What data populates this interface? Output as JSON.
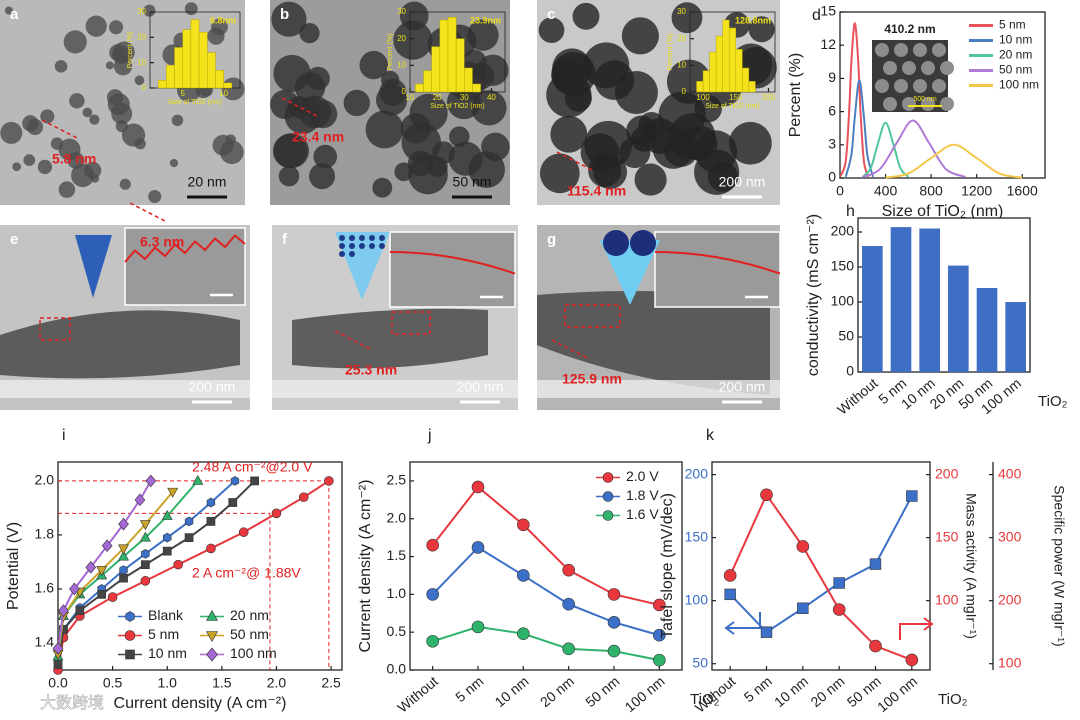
{
  "chart_data": [
    {
      "type": "histogram",
      "title": "6.8nm",
      "xlabel": "Size of TiO2 (nm)",
      "ylabel": "Percent (%)",
      "color": "#f3e21c",
      "bins": [
        2,
        3,
        4,
        5,
        6,
        7,
        8,
        9,
        10,
        11
      ],
      "counts": [
        3,
        9,
        16,
        23,
        27,
        22,
        14,
        7,
        2
      ],
      "xlim": [
        1,
        12
      ],
      "xticks": [
        5,
        10
      ],
      "ylim": [
        0,
        30
      ],
      "yticks": [
        0,
        10,
        20,
        30
      ]
    },
    {
      "type": "histogram",
      "title": "23.9nm",
      "xlabel": "Size of TiO2 (nm)",
      "ylabel": "Percent (%)",
      "color": "#f3e21c",
      "bins": [
        12,
        15,
        18,
        21,
        24,
        27,
        30,
        33,
        36
      ],
      "counts": [
        3,
        8,
        17,
        27,
        28,
        20,
        9,
        3
      ],
      "xlim": [
        10,
        45
      ],
      "xticks": [
        10,
        20,
        30,
        40
      ],
      "ylim": [
        0,
        30
      ],
      "yticks": [
        0,
        10,
        20,
        30
      ]
    },
    {
      "type": "histogram",
      "title": "128.8nm",
      "xlabel": "Size of TiO2 (nm)",
      "ylabel": "Percent (%)",
      "color": "#f3e21c",
      "bins": [
        90,
        100,
        110,
        120,
        130,
        140,
        150,
        160,
        170,
        180
      ],
      "counts": [
        4,
        8,
        15,
        21,
        27,
        24,
        16,
        9,
        4
      ],
      "xlim": [
        80,
        210
      ],
      "xticks": [
        100,
        150,
        200
      ],
      "ylim": [
        0,
        30
      ],
      "yticks": [
        0,
        10,
        20,
        30
      ]
    },
    {
      "type": "line",
      "letter": "d",
      "xlabel": "Size of TiO₂ (nm)",
      "ylabel": "Percent (%)",
      "xlim": [
        0,
        1800
      ],
      "xticks": [
        0,
        400,
        800,
        1200,
        1600
      ],
      "ylim": [
        0,
        15
      ],
      "yticks": [
        0,
        3,
        6,
        9,
        12,
        15
      ],
      "legend": "upper right",
      "inset_label": "410.2 nm",
      "inset_scale": "500 nm",
      "series": [
        {
          "name": "5 nm",
          "color": "#e8525a",
          "x": [
            0,
            50,
            80,
            100,
            130,
            160,
            180,
            210,
            250
          ],
          "values": [
            0.1,
            1.5,
            6,
            10.5,
            14,
            10.5,
            6,
            1.5,
            0.1
          ]
        },
        {
          "name": "10 nm",
          "color": "#4a7fc1",
          "x": [
            50,
            100,
            130,
            170,
            210,
            240,
            290
          ],
          "values": [
            0.1,
            2.1,
            5.5,
            8.8,
            5.5,
            2.1,
            0.1
          ]
        },
        {
          "name": "20 nm",
          "color": "#4fc79a",
          "x": [
            200,
            270,
            330,
            400,
            470,
            530,
            600
          ],
          "values": [
            0.1,
            0.9,
            3,
            5,
            3,
            0.9,
            0.1
          ]
        },
        {
          "name": "50 nm",
          "color": "#b07ad6",
          "x": [
            200,
            350,
            500,
            640,
            780,
            930,
            1100
          ],
          "values": [
            0.1,
            0.8,
            3.2,
            5.2,
            3.2,
            0.8,
            0.1
          ]
        },
        {
          "name": "100 nm",
          "color": "#f4c84a",
          "x": [
            400,
            600,
            800,
            1000,
            1200,
            1400,
            1600
          ],
          "values": [
            0.03,
            0.4,
            1.8,
            3,
            1.8,
            0.4,
            0.03
          ]
        }
      ]
    },
    {
      "type": "bar",
      "letter": "h",
      "categories": [
        "Without",
        "5 nm",
        "10 nm",
        "20 nm",
        "50 nm",
        "100 nm"
      ],
      "values": [
        180,
        207,
        205,
        152,
        120,
        100
      ],
      "color": "#3f6fc4",
      "ylim": [
        0,
        220
      ],
      "yticks": [
        0,
        50,
        100,
        150,
        200
      ],
      "ylabel": "conductivity (mS cm⁻²)",
      "xlabel": "TiO₂"
    },
    {
      "type": "line",
      "letter": "i",
      "xlabel": "Current density (A cm⁻²)",
      "ylabel": "Potential (V)",
      "xlim": [
        0,
        2.6
      ],
      "xticks": [
        {
          "value": 0,
          "label": "0.0"
        },
        0.5,
        {
          "value": 1,
          "label": "1.0"
        },
        1.5,
        {
          "value": 2,
          "label": "2.0"
        },
        2.5
      ],
      "ylim": [
        1.3,
        2.07
      ],
      "yticks": [
        1.4,
        1.6,
        1.8,
        {
          "value": 2,
          "label": "2.0"
        }
      ],
      "legend": "lower center",
      "legend_columns": 2,
      "ref_lines": [
        {
          "x": 2.48,
          "y": 2.0
        },
        {
          "x": 1.94,
          "y": 1.88
        }
      ],
      "annotations": [
        "2.48 A cm⁻²@2.0 V",
        "2 A cm⁻²@ 1.88V"
      ],
      "series": [
        {
          "name": "Blank",
          "color": "#3b6fc8",
          "marker": "hexagon",
          "x": [
            0,
            0.05,
            0.2,
            0.4,
            0.6,
            0.8,
            1.0,
            1.2,
            1.4,
            1.62
          ],
          "values": [
            1.32,
            1.45,
            1.53,
            1.6,
            1.67,
            1.73,
            1.79,
            1.85,
            1.92,
            2.0
          ]
        },
        {
          "name": "5 nm",
          "color": "#e8383d",
          "marker": "circle",
          "x": [
            0,
            0.05,
            0.2,
            0.5,
            0.8,
            1.1,
            1.4,
            1.7,
            2.0,
            2.25,
            2.48
          ],
          "values": [
            1.3,
            1.42,
            1.5,
            1.57,
            1.63,
            1.69,
            1.75,
            1.81,
            1.88,
            1.94,
            2.0
          ]
        },
        {
          "name": "10 nm",
          "color": "#444444",
          "marker": "square",
          "x": [
            0,
            0.05,
            0.2,
            0.4,
            0.6,
            0.8,
            1.0,
            1.2,
            1.4,
            1.6,
            1.8
          ],
          "values": [
            1.32,
            1.45,
            1.52,
            1.58,
            1.64,
            1.69,
            1.74,
            1.79,
            1.85,
            1.92,
            2.0
          ]
        },
        {
          "name": "20 nm",
          "color": "#2fb36a",
          "marker": "triangle",
          "x": [
            0,
            0.05,
            0.2,
            0.4,
            0.6,
            0.8,
            1.0,
            1.28
          ],
          "values": [
            1.35,
            1.5,
            1.58,
            1.65,
            1.72,
            1.79,
            1.87,
            2.0
          ]
        },
        {
          "name": "50 nm",
          "color": "#c9a227",
          "marker": "triangle-down",
          "x": [
            0,
            0.05,
            0.2,
            0.4,
            0.6,
            0.8,
            1.05
          ],
          "values": [
            1.36,
            1.5,
            1.59,
            1.67,
            1.75,
            1.84,
            1.96
          ]
        },
        {
          "name": "100 nm",
          "color": "#a569d6",
          "marker": "diamond",
          "x": [
            0,
            0.05,
            0.15,
            0.3,
            0.45,
            0.6,
            0.75,
            0.85
          ],
          "values": [
            1.38,
            1.52,
            1.6,
            1.68,
            1.76,
            1.84,
            1.93,
            2.0
          ]
        }
      ]
    },
    {
      "type": "line",
      "letter": "j",
      "categories": [
        "Without",
        "5 nm",
        "10 nm",
        "20 nm",
        "50 nm",
        "100 nm"
      ],
      "ylabel": "Current density (A cm⁻²)",
      "xlabel": "TiO₂",
      "legend": "upper right",
      "ylim": [
        0,
        2.75
      ],
      "yticks": [
        {
          "value": 0,
          "label": "0.0"
        },
        0.5,
        {
          "value": 1,
          "label": "1.0"
        },
        1.5,
        {
          "value": 2,
          "label": "2.0"
        },
        2.5
      ],
      "series": [
        {
          "name": "2.0 V",
          "color": "#e8383d",
          "marker": "circle",
          "values": [
            1.65,
            2.42,
            1.92,
            1.32,
            1.0,
            0.86
          ]
        },
        {
          "name": "1.8 V",
          "color": "#3b6fc8",
          "marker": "circle",
          "values": [
            1.0,
            1.62,
            1.25,
            0.87,
            0.63,
            0.46
          ]
        },
        {
          "name": "1.6 V",
          "color": "#2fb36a",
          "marker": "circle",
          "values": [
            0.38,
            0.57,
            0.48,
            0.28,
            0.25,
            0.13
          ]
        }
      ]
    },
    {
      "type": "line",
      "letter": "k",
      "categories": [
        "Without",
        "5 nm",
        "10 nm",
        "20 nm",
        "50 nm",
        "100 nm"
      ],
      "xlabel": "TiO₂",
      "ylabel": "Tafel slope (mV/dec)",
      "ylim": [
        45,
        210
      ],
      "yticks": [
        50,
        100,
        150,
        200
      ],
      "y2label": "Mass activity (A mgIr⁻¹)",
      "y2lim": [
        45,
        210
      ],
      "y2ticks": [
        100,
        150,
        200
      ],
      "y3label": "Specific power (W mgIr⁻¹)",
      "y3lim": [
        90,
        420
      ],
      "y3ticks": [
        100,
        200,
        300,
        400
      ],
      "series": [
        {
          "color": "#3b6fc8",
          "marker": "square",
          "values": [
            105,
            75,
            94,
            114,
            129,
            183
          ]
        },
        {
          "color": "#e8383d",
          "marker": "circle",
          "axis": "y2",
          "values": [
            120,
            184,
            143,
            93,
            64,
            53
          ]
        }
      ]
    }
  ],
  "micrographs": [
    {
      "letter": "a",
      "measurement": "5.8 nm",
      "scale_bar": "20 nm"
    },
    {
      "letter": "b",
      "measurement": "23.4 nm",
      "scale_bar": "50 nm"
    },
    {
      "letter": "c",
      "measurement": "115.4 nm",
      "scale_bar": "200 nm"
    },
    {
      "letter": "e",
      "measurement": "6.3 nm",
      "scale_bar": "200 nm"
    },
    {
      "letter": "f",
      "measurement": "25.3 nm",
      "scale_bar": "200 nm"
    },
    {
      "letter": "g",
      "measurement": "125.9 nm",
      "scale_bar": "200 nm"
    }
  ],
  "watermark": "大数跨境"
}
